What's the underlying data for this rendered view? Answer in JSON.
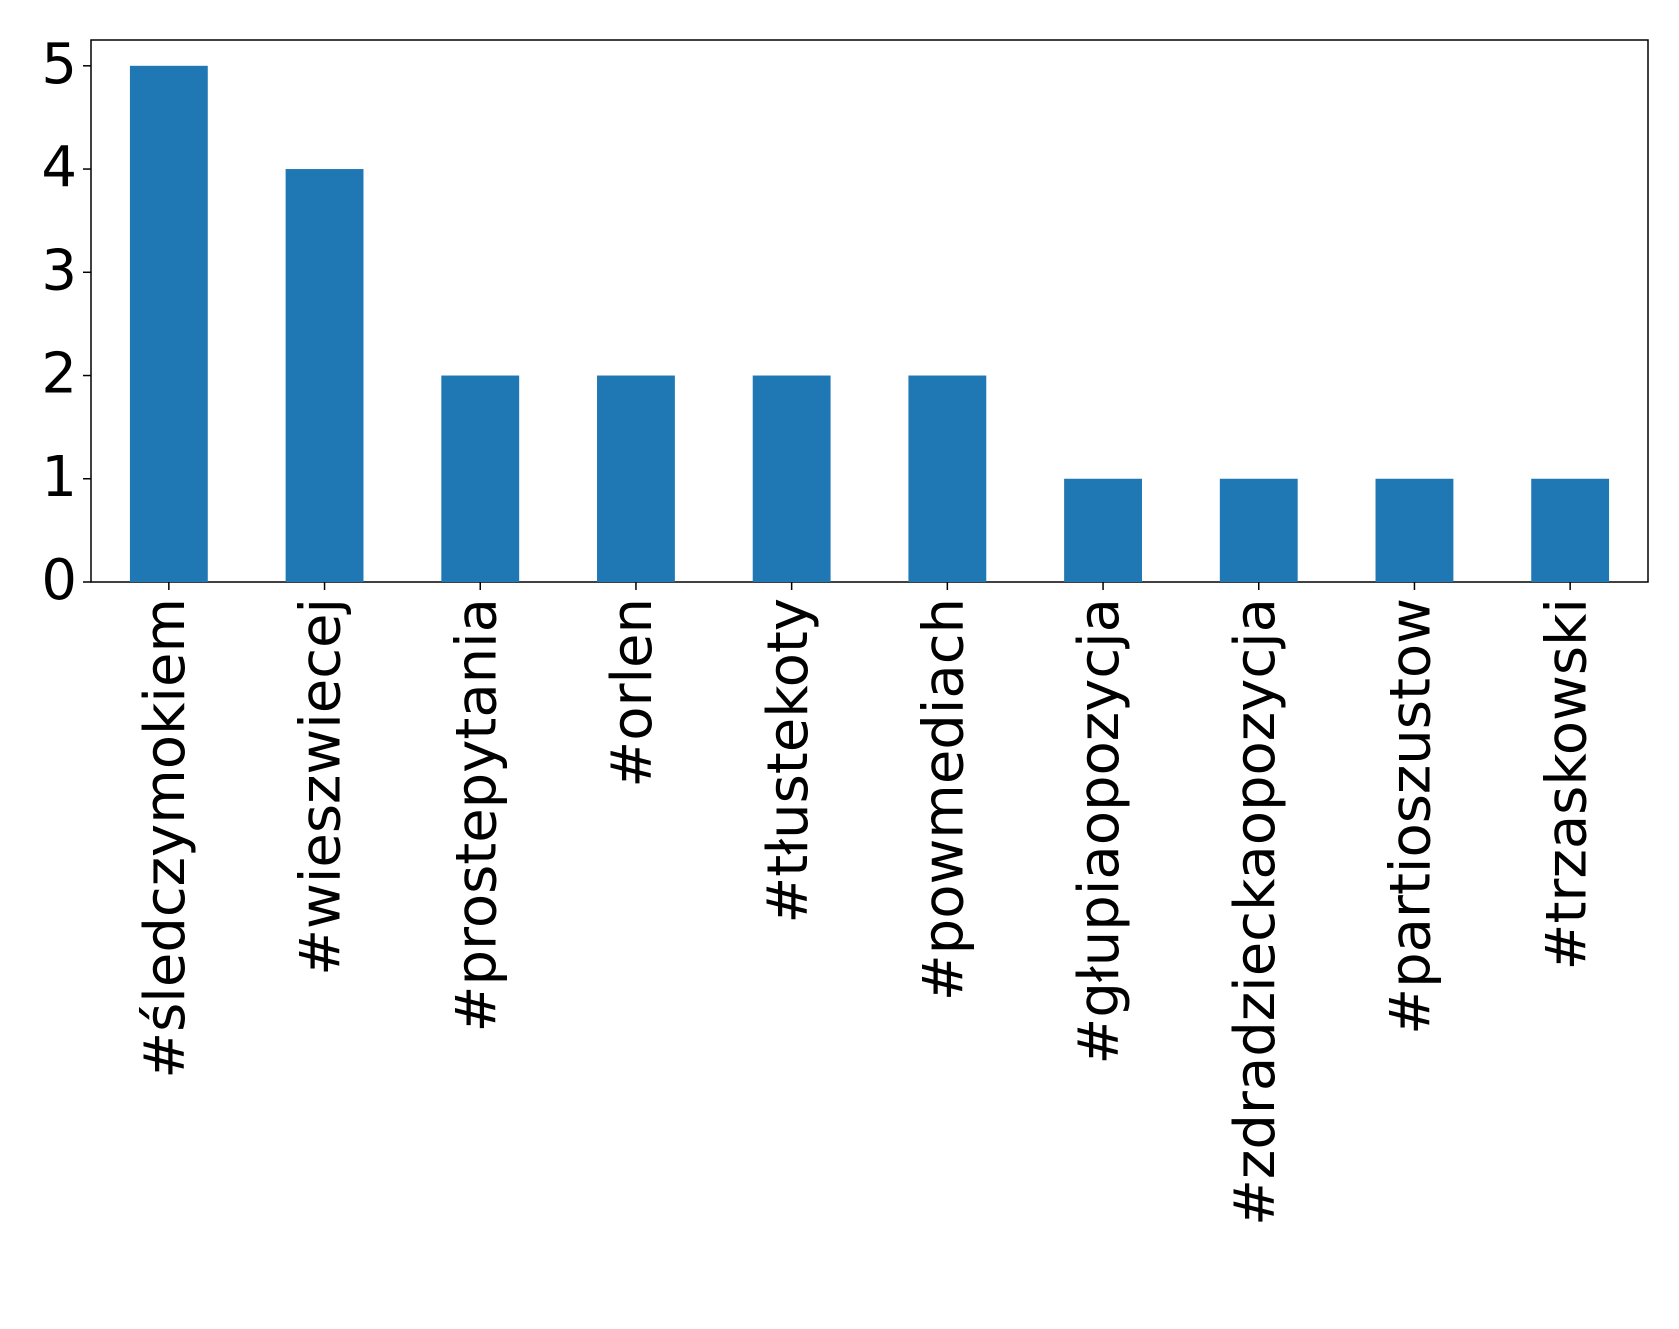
{
  "chart_data": {
    "type": "bar",
    "categories": [
      "#śledczymokiem",
      "#wieszwiecej",
      "#prostepytania",
      "#orlen",
      "#tłustekoty",
      "#powmediach",
      "#głupiaopozycja",
      "#zdradzieckaopozycja",
      "#partioszustow",
      "#trzaskowski"
    ],
    "values": [
      5,
      4,
      2,
      2,
      2,
      2,
      1,
      1,
      1,
      1
    ],
    "color": "#1f77b4",
    "ylim": [
      0,
      5.25
    ],
    "yticks": [
      0,
      1,
      2,
      3,
      4,
      5
    ],
    "grid": false
  }
}
